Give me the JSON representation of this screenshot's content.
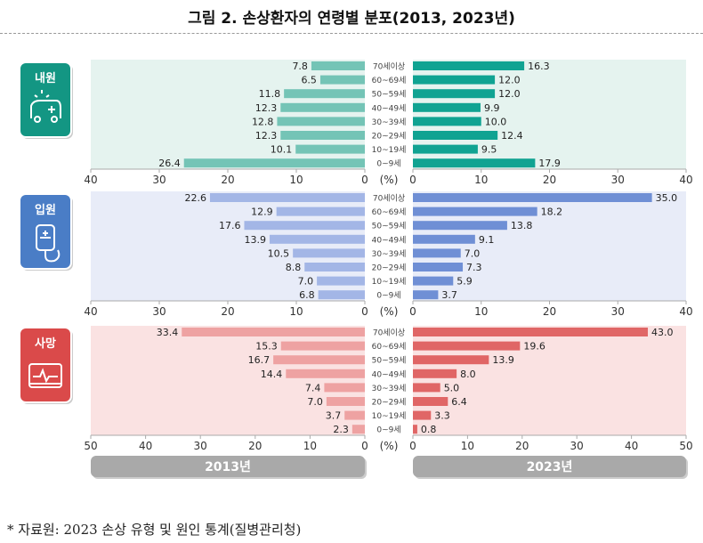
{
  "title": "그림 2. 손상환자의 연령별 분포(2013, 2023년)",
  "footer": "* 자료원: 2023 손상 유형 및 원인 통계(질병관리청)",
  "chart_data": [
    {
      "type": "bar",
      "panel": "내원",
      "icon": "ambulance-icon",
      "colors": {
        "panel_bg": "#e5f3ef",
        "icon_bg": "#139683",
        "bar_2013": "#74c4b6",
        "bar_2023": "#10a392"
      },
      "categories": [
        "70세이상",
        "60~69세",
        "50~59세",
        "40~49세",
        "30~39세",
        "20~29세",
        "10~19세",
        "0~9세"
      ],
      "series": [
        {
          "name": "2013년",
          "values": [
            7.8,
            6.5,
            11.8,
            12.3,
            12.8,
            12.3,
            10.1,
            26.4
          ]
        },
        {
          "name": "2023년",
          "values": [
            16.3,
            12.0,
            12.0,
            9.9,
            10.0,
            12.4,
            9.5,
            17.9
          ]
        }
      ],
      "xlim": [
        0,
        40
      ],
      "ticks": [
        0,
        10,
        20,
        30,
        40
      ],
      "unit": "(%)"
    },
    {
      "type": "bar",
      "panel": "입원",
      "icon": "iv-bag-icon",
      "colors": {
        "panel_bg": "#e8ecf8",
        "icon_bg": "#4a7dc6",
        "bar_2013": "#a3b6e6",
        "bar_2023": "#6f8fd5"
      },
      "categories": [
        "70세이상",
        "60~69세",
        "50~59세",
        "40~49세",
        "30~39세",
        "20~29세",
        "10~19세",
        "0~9세"
      ],
      "series": [
        {
          "name": "2013년",
          "values": [
            22.6,
            12.9,
            17.6,
            13.9,
            10.5,
            8.8,
            7.0,
            6.8
          ]
        },
        {
          "name": "2023년",
          "values": [
            35.0,
            18.2,
            13.8,
            9.1,
            7.0,
            7.3,
            5.9,
            3.7
          ]
        }
      ],
      "xlim": [
        0,
        40
      ],
      "ticks": [
        0,
        10,
        20,
        30,
        40
      ],
      "unit": "(%)"
    },
    {
      "type": "bar",
      "panel": "사망",
      "icon": "heart-monitor-icon",
      "colors": {
        "panel_bg": "#fae2e2",
        "icon_bg": "#da4a4a",
        "bar_2013": "#eea2a2",
        "bar_2023": "#e06666"
      },
      "categories": [
        "70세이상",
        "60~69세",
        "50~59세",
        "40~49세",
        "30~39세",
        "20~29세",
        "10~19세",
        "0~9세"
      ],
      "series": [
        {
          "name": "2013년",
          "values": [
            33.4,
            15.3,
            16.7,
            14.4,
            7.4,
            7.0,
            3.7,
            2.3
          ]
        },
        {
          "name": "2023년",
          "values": [
            43.0,
            19.6,
            13.9,
            8.0,
            5.0,
            6.4,
            3.3,
            0.8
          ]
        }
      ],
      "xlim": [
        0,
        50
      ],
      "ticks": [
        0,
        10,
        20,
        30,
        40,
        50
      ],
      "unit": "(%)"
    }
  ],
  "year_labels": [
    "2013년",
    "2023년"
  ],
  "year_label_color": "#a9a9a9"
}
